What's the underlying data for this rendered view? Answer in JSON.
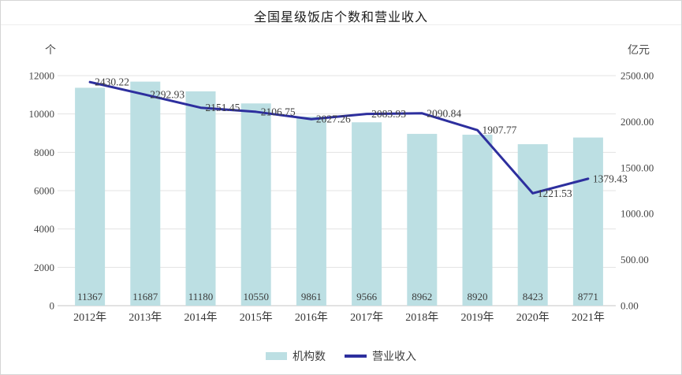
{
  "page": {
    "title": "全国星级饭店个数和营业收入"
  },
  "axes": {
    "left_unit": "个",
    "right_unit": "亿元"
  },
  "legend": {
    "bar_label": "机构数",
    "line_label": "营业收入"
  },
  "colors": {
    "bar_fill": "#bcdfe3",
    "line_stroke": "#2d2f9e",
    "grid": "#e3e3e3",
    "axis_line": "#c6c6c6",
    "tick_text": "#454545",
    "value_text": "#3d3d3d",
    "category_text": "#353535"
  },
  "chart_data": {
    "type": "bar",
    "subtype": "combo-bar-line",
    "title": "全国星级饭店个数和营业收入",
    "categories": [
      "2012年",
      "2013年",
      "2014年",
      "2015年",
      "2016年",
      "2017年",
      "2018年",
      "2019年",
      "2020年",
      "2021年"
    ],
    "series": [
      {
        "name": "机构数",
        "type": "bar",
        "axis": "left",
        "values": [
          11367,
          11687,
          11180,
          10550,
          9861,
          9566,
          8962,
          8920,
          8423,
          8771
        ]
      },
      {
        "name": "营业收入",
        "type": "line",
        "axis": "right",
        "values": [
          2430.22,
          2292.93,
          2151.45,
          2106.75,
          2027.26,
          2083.93,
          2090.84,
          1907.77,
          1221.53,
          1379.43
        ]
      }
    ],
    "left_axis": {
      "label": "个",
      "min": 0,
      "max": 12000,
      "ticks": [
        0,
        2000,
        4000,
        6000,
        8000,
        10000,
        12000
      ]
    },
    "right_axis": {
      "label": "亿元",
      "min": 0,
      "max": 2500,
      "ticks": [
        "0.00",
        "500.00",
        "1000.00",
        "1500.00",
        "2000.00",
        "2500.00"
      ]
    },
    "grid": true,
    "legend_position": "bottom",
    "data_labels": true
  }
}
